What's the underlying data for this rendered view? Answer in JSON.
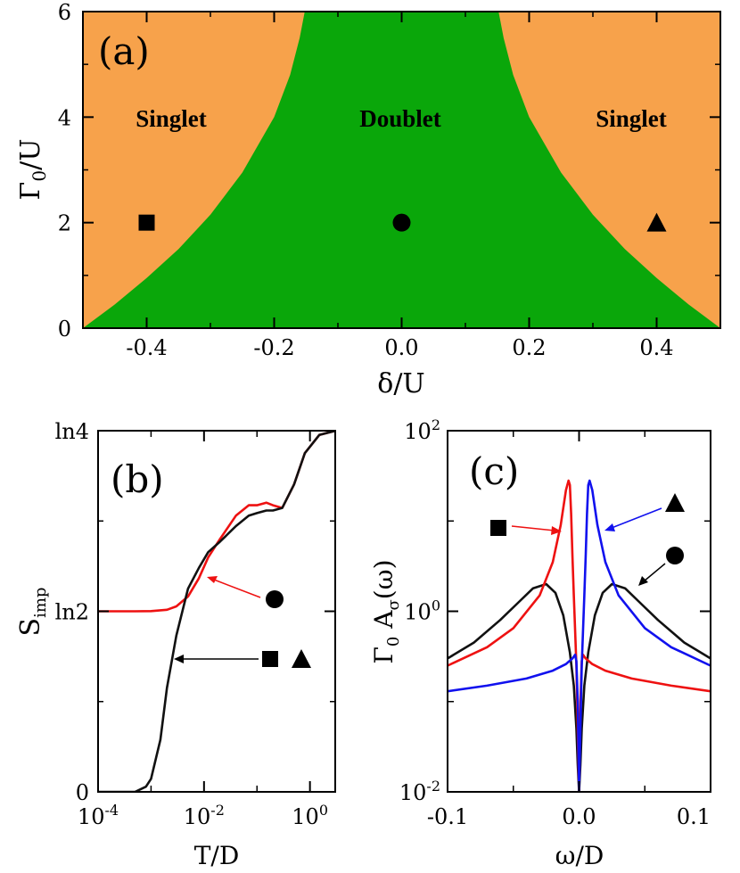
{
  "chart_data": [
    {
      "type": "area",
      "panel_label": "(a)",
      "xlabel": "δ/U",
      "ylabel_base": "Γ",
      "ylabel_sub": "0",
      "ylabel_tail": "/U",
      "xlim": [
        -0.5,
        0.5
      ],
      "ylim": [
        0,
        6
      ],
      "xticks": [
        "-0.4",
        "-0.2",
        "0.0",
        "0.2",
        "0.4"
      ],
      "yticks": [
        "0",
        "2",
        "4",
        "6"
      ],
      "regions": [
        {
          "label": "Singlet",
          "color": "#f7a24b"
        },
        {
          "label": "Doublet",
          "color": "#0aa70a"
        },
        {
          "label": "Singlet",
          "color": "#f7a24b"
        }
      ],
      "boundary_right": {
        "x": [
          0.5,
          0.45,
          0.4,
          0.35,
          0.3,
          0.25,
          0.2,
          0.175,
          0.16,
          0.152
        ],
        "y": [
          0,
          0.45,
          0.95,
          1.5,
          2.15,
          2.95,
          4.0,
          4.8,
          5.5,
          6.0
        ]
      },
      "markers": [
        {
          "symbol": "square",
          "x": -0.4,
          "y": 2
        },
        {
          "symbol": "circle",
          "x": 0.0,
          "y": 2
        },
        {
          "symbol": "triangle",
          "x": 0.4,
          "y": 2
        }
      ]
    },
    {
      "type": "line",
      "panel_label": "(b)",
      "xlabel": "T/D",
      "ylabel_base": "S",
      "ylabel_sub": "imp",
      "x_scale": "log",
      "xlim": [
        0.0001,
        3
      ],
      "ylim": [
        0,
        1.3863
      ],
      "xticks": [
        {
          "base": "10",
          "exp": "-4",
          "value": 0.0001
        },
        {
          "base": "10",
          "exp": "-2",
          "value": 0.01
        },
        {
          "base": "10",
          "exp": "0",
          "value": 1
        }
      ],
      "yticks": [
        {
          "label": "0",
          "value": 0
        },
        {
          "label": "ln2",
          "value": 0.6931
        },
        {
          "label": "ln4",
          "value": 1.3863
        }
      ],
      "series": [
        {
          "marker_legend": "circle",
          "color": "#ee1111",
          "x": [
            0.0001,
            0.0005,
            0.001,
            0.002,
            0.003,
            0.005,
            0.008,
            0.012,
            0.02,
            0.04,
            0.07,
            0.1,
            0.15,
            0.2,
            0.3,
            0.5,
            0.8,
            1.5,
            3
          ],
          "y": [
            0.693,
            0.693,
            0.694,
            0.699,
            0.712,
            0.75,
            0.82,
            0.9,
            0.97,
            1.06,
            1.1,
            1.1,
            1.11,
            1.1,
            1.09,
            1.18,
            1.3,
            1.37,
            1.386
          ]
        },
        {
          "marker_legend": "square, triangle",
          "color": "#111111",
          "x": [
            0.0001,
            0.0005,
            0.0008,
            0.001,
            0.0015,
            0.002,
            0.003,
            0.005,
            0.008,
            0.012,
            0.02,
            0.04,
            0.07,
            0.1,
            0.15,
            0.2,
            0.3,
            0.5,
            0.8,
            1.5,
            3
          ],
          "y": [
            0,
            0.0,
            0.02,
            0.05,
            0.2,
            0.4,
            0.6,
            0.78,
            0.86,
            0.92,
            0.96,
            1.02,
            1.06,
            1.07,
            1.08,
            1.08,
            1.09,
            1.18,
            1.3,
            1.37,
            1.386
          ]
        }
      ]
    },
    {
      "type": "line",
      "panel_label": "(c)",
      "xlabel": "ω/D",
      "ylabel_parts": [
        "Γ",
        "0",
        " A",
        "σ",
        "(ω)"
      ],
      "y_scale": "log",
      "xlim": [
        -0.1,
        0.1
      ],
      "ylim": [
        0.01,
        100
      ],
      "xticks": [
        "-0.1",
        "0.0",
        "0.1"
      ],
      "yticks": [
        {
          "base": "10",
          "exp": "-2",
          "value": 0.01
        },
        {
          "base": "10",
          "exp": "0",
          "value": 1
        },
        {
          "base": "10",
          "exp": "2",
          "value": 100
        }
      ],
      "series": [
        {
          "marker_legend": "circle",
          "color": "#111111",
          "x": [
            -0.1,
            -0.08,
            -0.06,
            -0.045,
            -0.035,
            -0.025,
            -0.018,
            -0.012,
            -0.007,
            -0.004,
            -0.002,
            -0.001,
            0.0,
            0.001,
            0.002,
            0.004,
            0.007,
            0.012,
            0.018,
            0.025,
            0.035,
            0.045,
            0.06,
            0.08,
            0.1
          ],
          "y": [
            0.3,
            0.45,
            0.8,
            1.3,
            1.8,
            2.0,
            1.6,
            0.9,
            0.35,
            0.15,
            0.05,
            0.02,
            0.01,
            0.02,
            0.05,
            0.15,
            0.35,
            0.9,
            1.6,
            2.0,
            1.8,
            1.3,
            0.8,
            0.45,
            0.3
          ]
        },
        {
          "marker_legend": "square",
          "color": "#ee1111",
          "x": [
            -0.1,
            -0.07,
            -0.05,
            -0.03,
            -0.02,
            -0.014,
            -0.01,
            -0.008,
            -0.007,
            -0.006,
            -0.005,
            -0.004,
            -0.003,
            -0.002,
            -0.001,
            0.0,
            0.001,
            0.002,
            0.003,
            0.005,
            0.01,
            0.02,
            0.04,
            0.07,
            0.1
          ],
          "y": [
            0.25,
            0.4,
            0.65,
            1.5,
            3.5,
            9.0,
            22.0,
            28.0,
            25.0,
            12.0,
            4.0,
            1.5,
            0.6,
            0.25,
            0.05,
            0.01,
            0.1,
            0.28,
            0.33,
            0.3,
            0.26,
            0.22,
            0.18,
            0.15,
            0.13
          ]
        },
        {
          "marker_legend": "triangle",
          "color": "#1111ee",
          "x": [
            -0.1,
            -0.07,
            -0.04,
            -0.02,
            -0.01,
            -0.005,
            -0.003,
            -0.002,
            -0.001,
            0.0,
            0.001,
            0.002,
            0.003,
            0.004,
            0.005,
            0.006,
            0.007,
            0.008,
            0.01,
            0.014,
            0.02,
            0.03,
            0.05,
            0.07,
            0.1
          ],
          "y": [
            0.13,
            0.15,
            0.18,
            0.22,
            0.26,
            0.3,
            0.33,
            0.28,
            0.1,
            0.01,
            0.05,
            0.25,
            0.6,
            1.5,
            4.0,
            12.0,
            25.0,
            28.0,
            22.0,
            9.0,
            3.5,
            1.5,
            0.65,
            0.4,
            0.25
          ]
        }
      ]
    }
  ]
}
